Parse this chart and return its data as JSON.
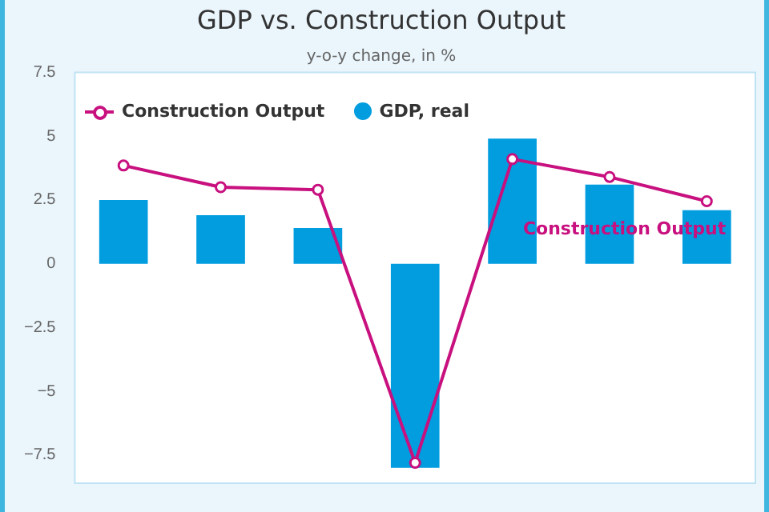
{
  "chart_data": {
    "type": "bar",
    "title": "GDP vs. Construction Output",
    "subtitle": "y-o-y change, in %",
    "categories": [
      null,
      null,
      null,
      null,
      null,
      null,
      null
    ],
    "series": [
      {
        "name": "Construction Output",
        "type": "line",
        "color": "#c8107f",
        "values": [
          3.85,
          3.0,
          2.9,
          -7.8,
          4.1,
          3.4,
          2.45
        ]
      },
      {
        "name": "GDP, real",
        "color": "#019ddf",
        "values": [
          2.5,
          1.9,
          1.4,
          -8.0,
          4.9,
          3.1,
          2.1
        ]
      }
    ],
    "annotations": [
      "Construction Output"
    ],
    "ylim": [
      -8.6,
      7.5
    ],
    "yticks": [
      -7.5,
      -5,
      -2.5,
      0,
      2.5,
      5,
      7.5
    ],
    "grid": false,
    "legend": "top left",
    "marker": "circle",
    "line_style": "solid",
    "tick_labels": "y"
  }
}
